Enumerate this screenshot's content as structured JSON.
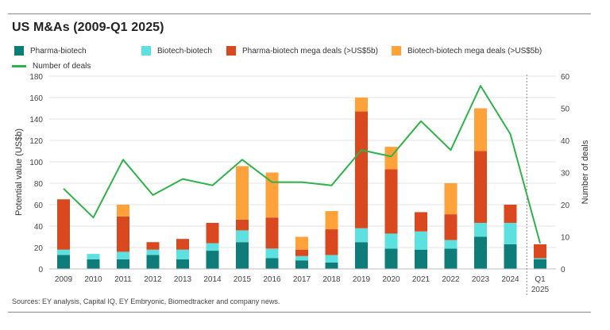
{
  "title": "US M&As (2009-Q1 2025)",
  "source": "Sources: EY analysis, Capital IQ, EY Embryonic, Biomedtracker and company news.",
  "colors": {
    "pharma_biotech": "#0e7c78",
    "biotech_biotech": "#5ce0e0",
    "pharma_mega": "#d9481e",
    "biotech_mega": "#ffa23a",
    "deals_line": "#2db34a"
  },
  "chart_data": {
    "type": "bar",
    "stacked": true,
    "categories": [
      "2009",
      "2010",
      "2011",
      "2012",
      "2013",
      "2014",
      "2015",
      "2016",
      "2017",
      "2018",
      "2019",
      "2020",
      "2021",
      "2022",
      "2023",
      "2024",
      "Q1 2025"
    ],
    "series": [
      {
        "name": "Pharma-biotech",
        "values": [
          13,
          9,
          9,
          13,
          9,
          17,
          25,
          10,
          8,
          6,
          25,
          19,
          18,
          19,
          30,
          23,
          9
        ]
      },
      {
        "name": "Biotech-biotech",
        "values": [
          5,
          5,
          7,
          5,
          9,
          7,
          11,
          9,
          4,
          7,
          13,
          14,
          17,
          8,
          13,
          20,
          1
        ]
      },
      {
        "name": "Pharma-biotech mega deals (>US$5b)",
        "values": [
          47,
          0,
          33,
          7,
          10,
          19,
          10,
          29,
          6,
          24,
          109,
          60,
          18,
          24,
          67,
          17,
          13
        ]
      },
      {
        "name": "Biotech-biotech mega deals (>US$5b)",
        "values": [
          0,
          0,
          11,
          0,
          0,
          0,
          50,
          42,
          12,
          17,
          13,
          21,
          0,
          29,
          40,
          0,
          0
        ]
      }
    ],
    "line_series": {
      "name": "Number of deals",
      "axis": "right",
      "values": [
        25,
        16,
        34,
        23,
        28,
        26,
        34,
        27,
        27,
        26,
        37,
        35,
        46,
        37,
        57,
        42,
        8
      ]
    },
    "ylabel": "Potential value (US$b)",
    "ylabel_right": "Number of deals",
    "ylim": [
      0,
      180
    ],
    "ylim_right": [
      0,
      60
    ],
    "yticks": [
      "0",
      "20",
      "40",
      "60",
      "80",
      "100",
      "120",
      "140",
      "160",
      "180"
    ],
    "yticks_right": [
      "0",
      "10",
      "20",
      "30",
      "40",
      "50",
      "60"
    ],
    "legend_position": "top-left",
    "grid": true
  }
}
